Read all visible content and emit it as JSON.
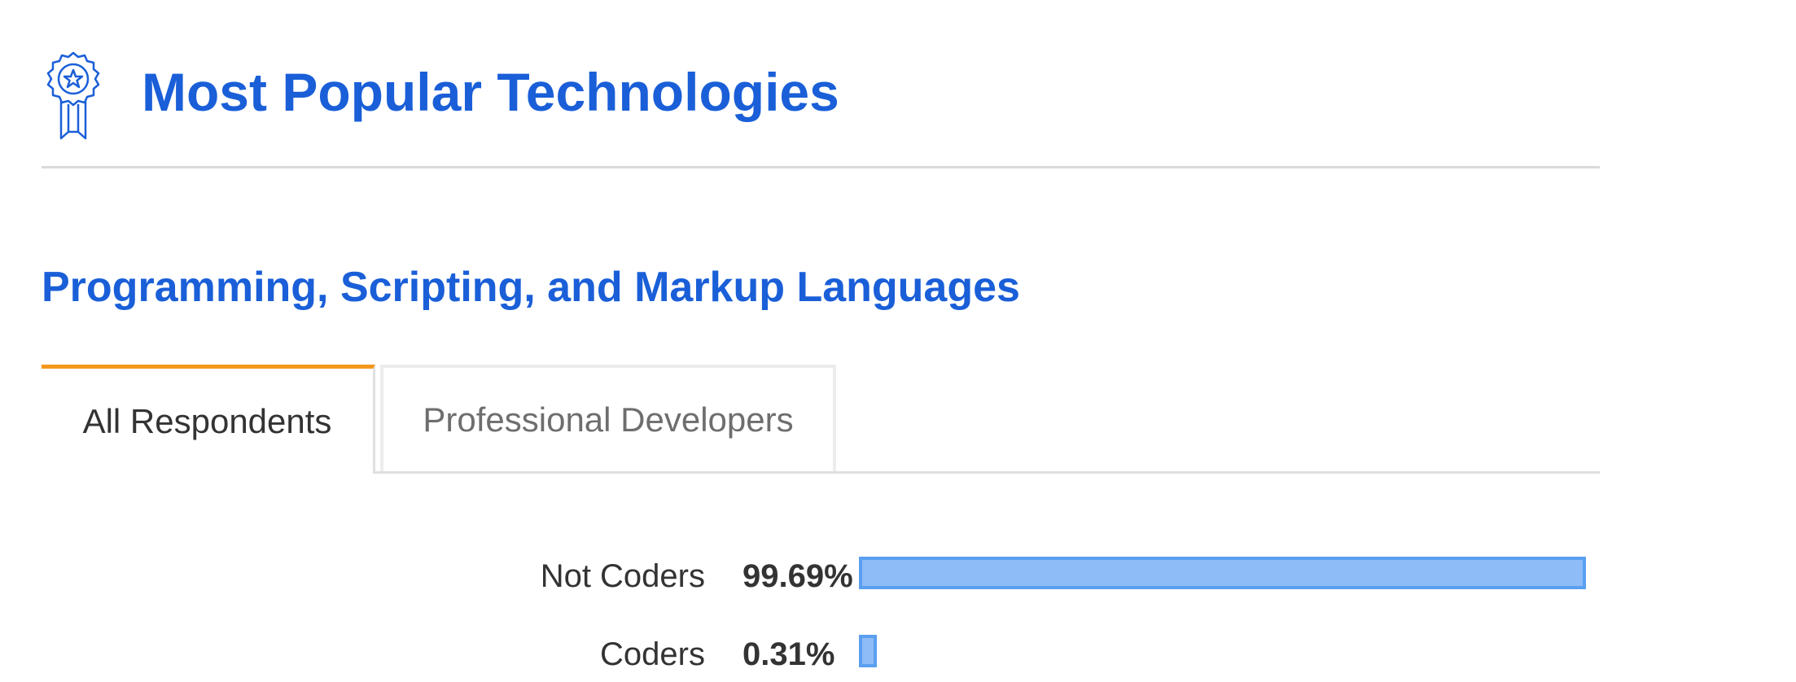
{
  "header": {
    "title": "Most Popular Technologies",
    "icon": "award-ribbon-icon",
    "accent_color": "#1a5fd8"
  },
  "section": {
    "title": "Programming, Scripting, and Markup Languages"
  },
  "tabs": [
    {
      "label": "All Respondents",
      "active": true
    },
    {
      "label": "Professional Developers",
      "active": false
    }
  ],
  "tab_active_color": "#f4981d",
  "chart_data": {
    "type": "bar",
    "orientation": "horizontal",
    "categories": [
      "Not Coders",
      "Coders"
    ],
    "values": [
      99.69,
      0.31
    ],
    "value_labels": [
      "99.69%",
      "0.31%"
    ],
    "xlim": [
      0,
      100
    ],
    "bar_color": "#8ebcf7",
    "bar_border_color": "#5a9ff0"
  }
}
